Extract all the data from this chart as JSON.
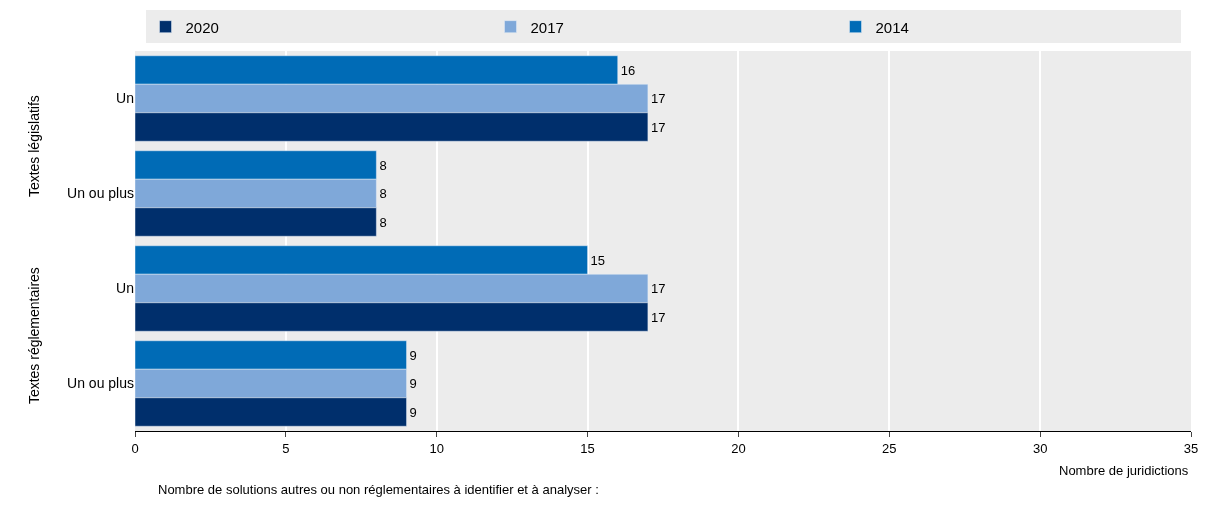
{
  "chart_data": {
    "type": "bar",
    "orientation": "horizontal",
    "xlabel": "Nombre de juridictions",
    "categories": [
      "Un",
      "Un ou plus",
      "Un",
      "Un ou plus"
    ],
    "series": [
      {
        "name": "2020",
        "color": "#002f6c",
        "values": [
          17,
          8,
          17,
          9
        ]
      },
      {
        "name": "2017",
        "color": "#7fa8d9",
        "values": [
          17,
          8,
          17,
          9
        ]
      },
      {
        "name": "2014",
        "color": "#006bb6",
        "values": [
          16,
          8,
          15,
          9
        ]
      }
    ],
    "xlim": [
      0,
      35
    ],
    "xticks": [
      0,
      5,
      10,
      15,
      20,
      25,
      30,
      35
    ],
    "grid": "x",
    "legend": "top",
    "data_labels": true,
    "annotations": [
      "Textes législatifs",
      "Textes réglementaires",
      "Nombre de solutions autres ou non réglementaires à identifier et à analyser :"
    ]
  }
}
